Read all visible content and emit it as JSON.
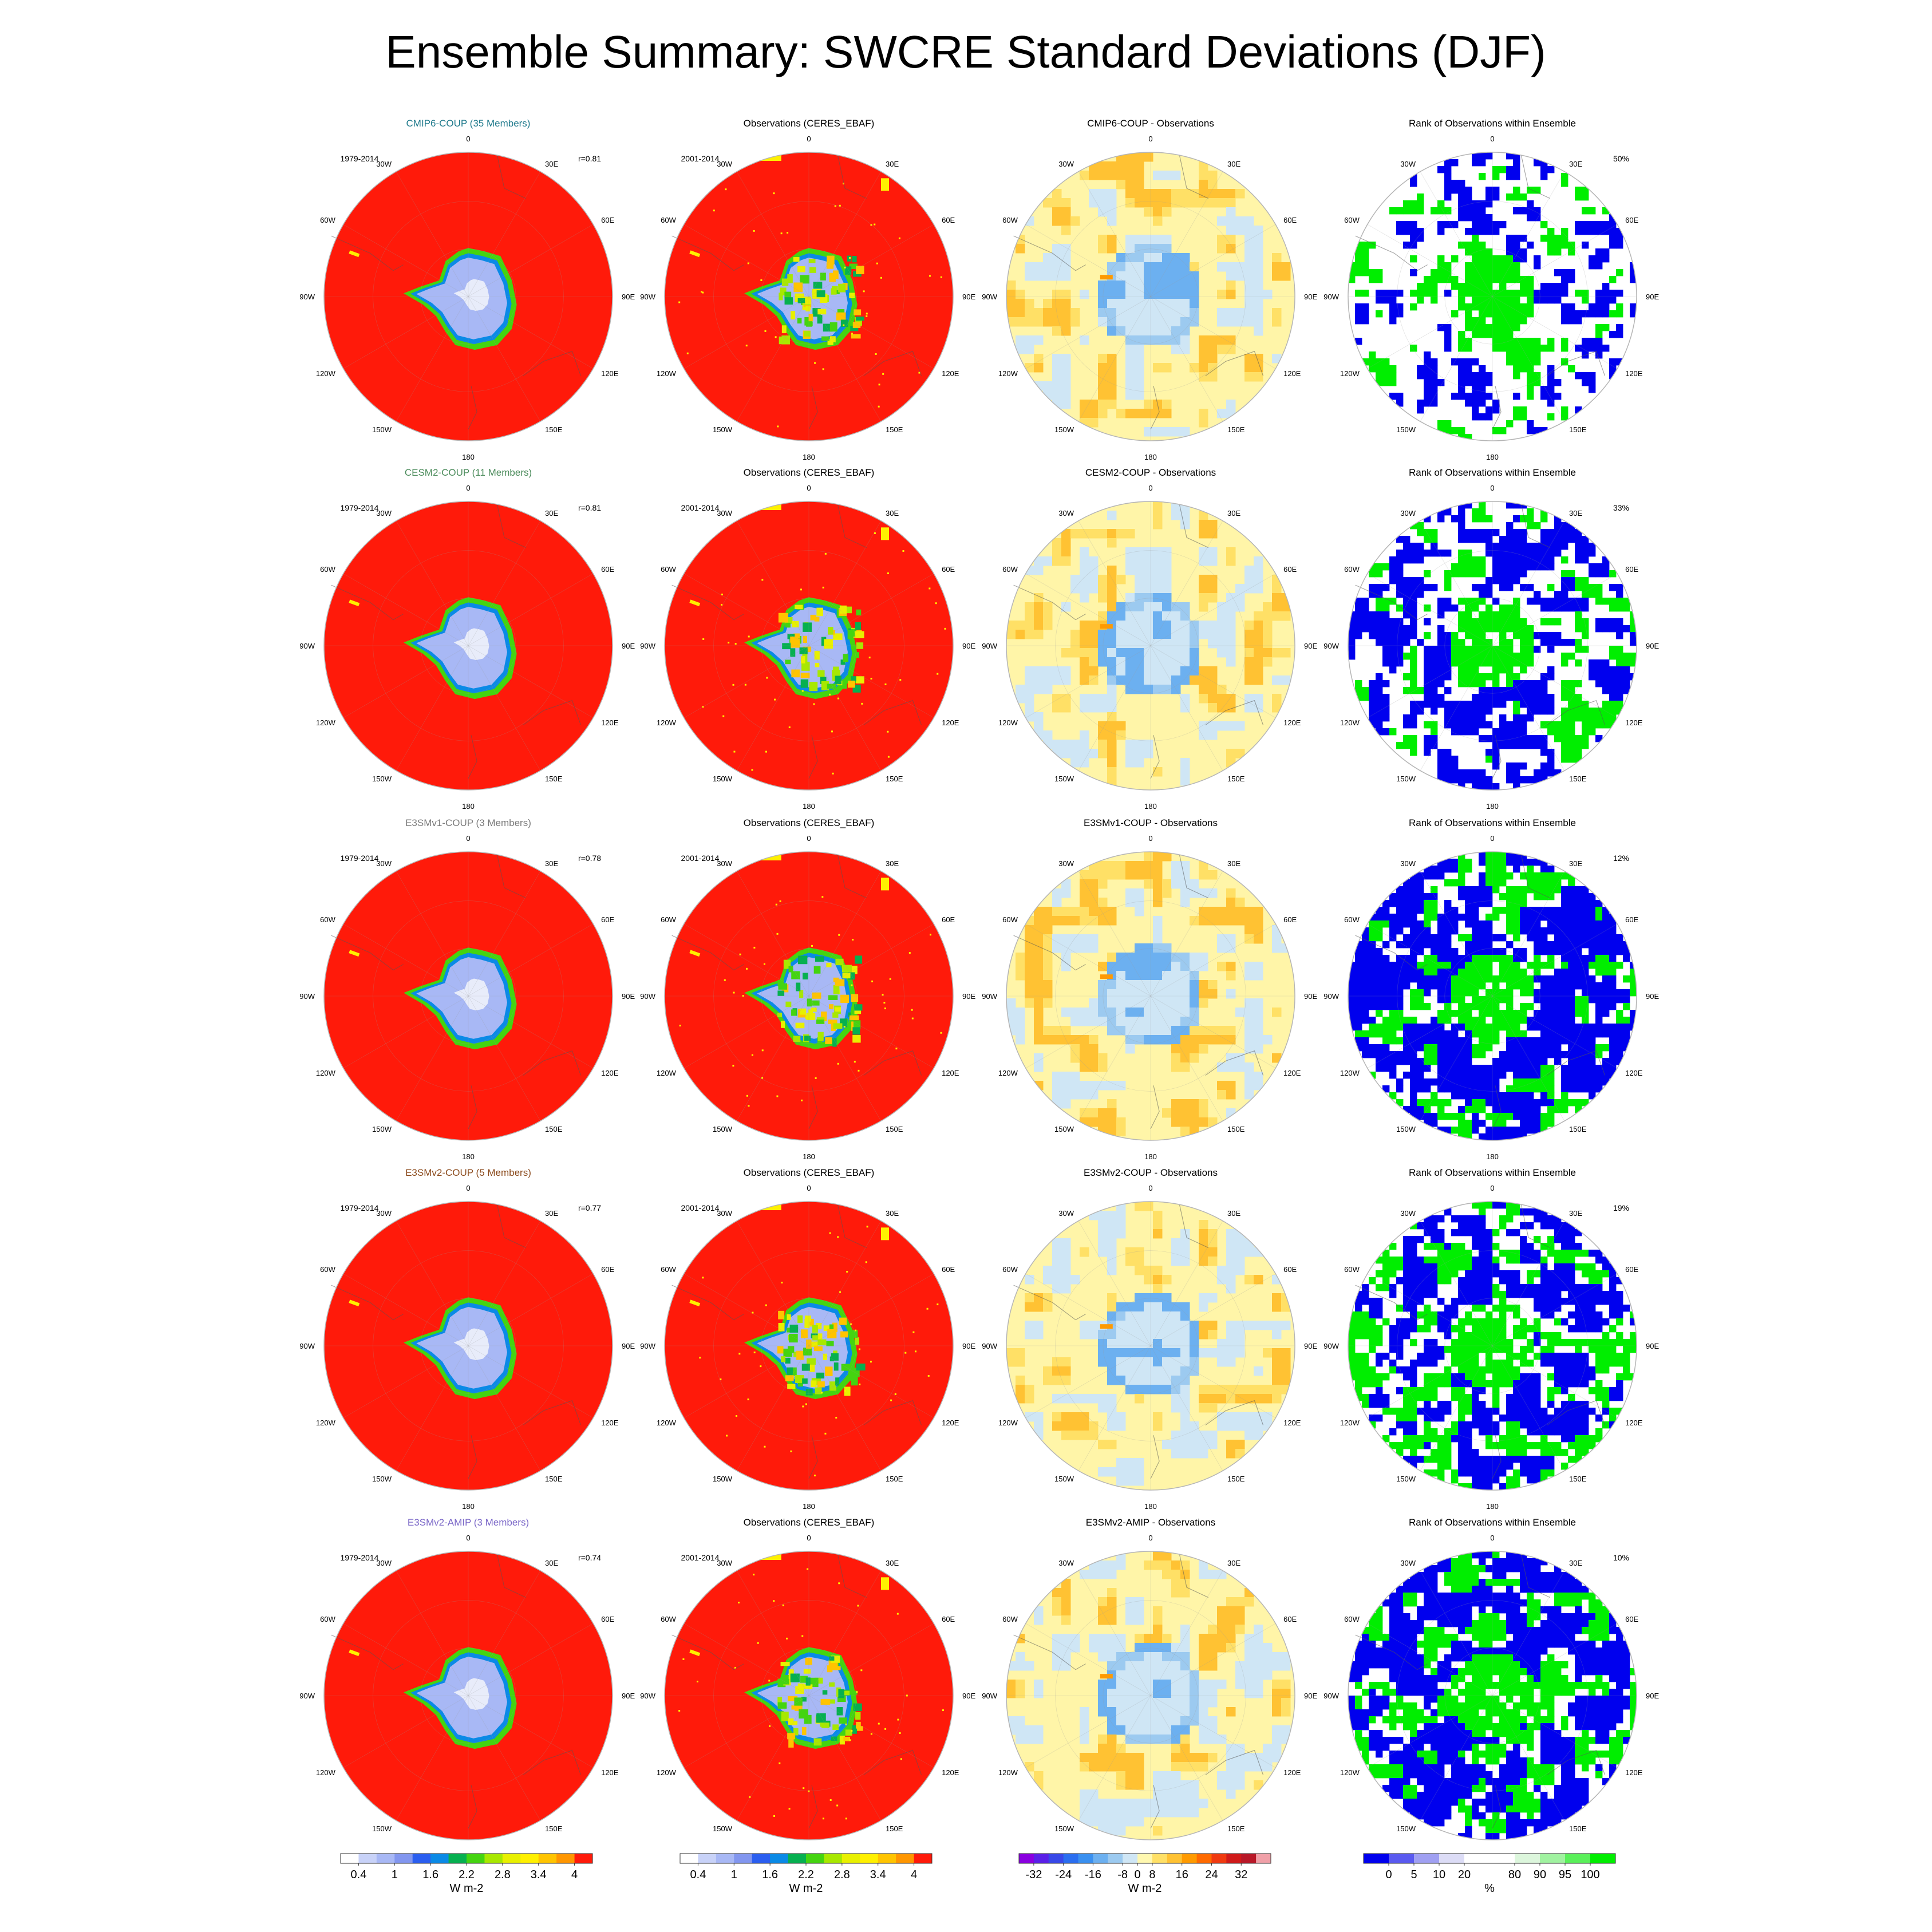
{
  "title": "Ensemble Summary: SWCRE Standard Deviations (DJF)",
  "chart_data": {
    "type": "heatmap",
    "projection": "south-polar-stereographic",
    "grid": true,
    "lon_labels": [
      "0",
      "30E",
      "60E",
      "90E",
      "120E",
      "150E",
      "180",
      "150W",
      "120W",
      "90W",
      "60W",
      "30W"
    ],
    "colors": {
      "std_field": "#ff1a0a",
      "diff_base": "#fff5a8",
      "rank_low": "#0000ee",
      "rank_high": "#00ee00"
    },
    "rows": [
      {
        "model": {
          "title": "CMIP6-COUP (35 Members)",
          "title_color": "#1f7a8c",
          "years": "1979-2014",
          "r": "r=0.81"
        },
        "obs": {
          "title": "Observations (CERES_EBAF)",
          "years": "2001-2014"
        },
        "diff": {
          "title": "CMIP6-COUP - Observations"
        },
        "rank": {
          "title": "Rank of Observations within Ensemble",
          "pct": "50%",
          "pct_value": 50
        }
      },
      {
        "model": {
          "title": "CESM2-COUP (11 Members)",
          "title_color": "#4c8c5c",
          "years": "1979-2014",
          "r": "r=0.81"
        },
        "obs": {
          "title": "Observations (CERES_EBAF)",
          "years": "2001-2014"
        },
        "diff": {
          "title": "CESM2-COUP - Observations"
        },
        "rank": {
          "title": "Rank of Observations within Ensemble",
          "pct": "33%",
          "pct_value": 33
        }
      },
      {
        "model": {
          "title": "E3SMv1-COUP (3 Members)",
          "title_color": "#7a7a7a",
          "years": "1979-2014",
          "r": "r=0.78"
        },
        "obs": {
          "title": "Observations (CERES_EBAF)",
          "years": "2001-2014"
        },
        "diff": {
          "title": "E3SMv1-COUP - Observations"
        },
        "rank": {
          "title": "Rank of Observations within Ensemble",
          "pct": "12%",
          "pct_value": 12
        }
      },
      {
        "model": {
          "title": "E3SMv2-COUP (5 Members)",
          "title_color": "#8b4a1c",
          "years": "1979-2014",
          "r": "r=0.77"
        },
        "obs": {
          "title": "Observations (CERES_EBAF)",
          "years": "2001-2014"
        },
        "diff": {
          "title": "E3SMv2-COUP - Observations"
        },
        "rank": {
          "title": "Rank of Observations within Ensemble",
          "pct": "19%",
          "pct_value": 19
        }
      },
      {
        "model": {
          "title": "E3SMv2-AMIP (3 Members)",
          "title_color": "#7b68c8",
          "years": "1979-2014",
          "r": "r=0.74"
        },
        "obs": {
          "title": "Observations (CERES_EBAF)",
          "years": "2001-2014"
        },
        "diff": {
          "title": "E3SMv2-AMIP - Observations"
        },
        "rank": {
          "title": "Rank of Observations within Ensemble",
          "pct": "10%",
          "pct_value": 10
        }
      }
    ],
    "colorbars": [
      {
        "id": "model-std",
        "units": "W m-2",
        "colors": [
          "#ffffff",
          "#c8d2f8",
          "#a8b8f5",
          "#8296ef",
          "#2a5ef0",
          "#0a8ae6",
          "#06b050",
          "#44d410",
          "#a8e800",
          "#e8f000",
          "#fff000",
          "#ffc400",
          "#ff9600",
          "#ff1a0a"
        ],
        "labels": [
          [
            "0.4",
            1
          ],
          [
            "1",
            3
          ],
          [
            "1.6",
            5
          ],
          [
            "2.2",
            7
          ],
          [
            "2.8",
            9
          ],
          [
            "3.4",
            11
          ],
          [
            "4",
            13
          ]
        ]
      },
      {
        "id": "obs-std",
        "units": "W m-2",
        "colors": [
          "#ffffff",
          "#c8d2f8",
          "#a8b8f5",
          "#8296ef",
          "#2a5ef0",
          "#0a8ae6",
          "#06b050",
          "#44d410",
          "#a8e800",
          "#e8f000",
          "#fff000",
          "#ffc400",
          "#ff9600",
          "#ff1a0a"
        ],
        "labels": [
          [
            "0.4",
            1
          ],
          [
            "1",
            3
          ],
          [
            "1.6",
            5
          ],
          [
            "2.2",
            7
          ],
          [
            "2.8",
            9
          ],
          [
            "3.4",
            11
          ],
          [
            "4",
            13
          ]
        ]
      },
      {
        "id": "difference",
        "units": "W m-2",
        "colors": [
          "#8a00e0",
          "#5a20e8",
          "#3848e8",
          "#2a6ef0",
          "#3a90f0",
          "#6cb0f0",
          "#9ccaf0",
          "#cfe6f5",
          "#fff8b0",
          "#ffe066",
          "#ffc233",
          "#ff9a00",
          "#ff6a00",
          "#f03a10",
          "#d01a1a",
          "#b81828",
          "#f0a0a8"
        ],
        "labels": [
          [
            "-32",
            1
          ],
          [
            "-24",
            3
          ],
          [
            "-16",
            5
          ],
          [
            "-8",
            7
          ],
          [
            "0",
            8
          ],
          [
            "8",
            9
          ],
          [
            "16",
            11
          ],
          [
            "24",
            13
          ],
          [
            "32",
            15
          ]
        ]
      },
      {
        "id": "rank",
        "units": "%",
        "colors": [
          "#0000ee",
          "#5a5af0",
          "#a0a0f2",
          "#dcdcf6",
          "#ffffff",
          "#ffffff",
          "#dcf6dc",
          "#a0f2a0",
          "#5af05a",
          "#00ee00"
        ],
        "labels": [
          [
            "0",
            1
          ],
          [
            "5",
            2
          ],
          [
            "10",
            3
          ],
          [
            "20",
            4
          ],
          [
            "80",
            6
          ],
          [
            "90",
            7
          ],
          [
            "95",
            8
          ],
          [
            "100",
            9
          ]
        ]
      }
    ]
  }
}
